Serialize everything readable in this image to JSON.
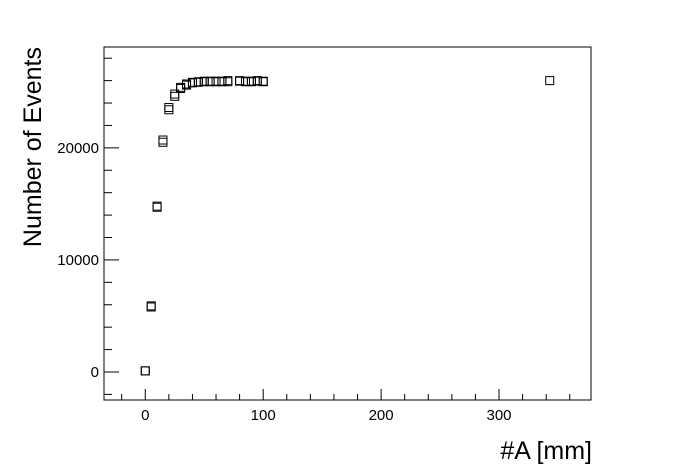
{
  "chart_data": {
    "type": "scatter",
    "title": "",
    "xlabel": "#A [mm]",
    "ylabel": "Number of Events",
    "xlim": [
      -35,
      378
    ],
    "ylim": [
      -2500,
      29000
    ],
    "x_ticks": [
      0,
      100,
      200,
      300
    ],
    "y_ticks": [
      0,
      10000,
      20000
    ],
    "marker": "open-square",
    "grid": false,
    "series": [
      {
        "points": [
          [
            0,
            100
          ],
          [
            5,
            5900
          ],
          [
            10,
            14800
          ],
          [
            15,
            20700
          ],
          [
            20,
            23600
          ],
          [
            25,
            24800
          ],
          [
            30,
            25400
          ],
          [
            35,
            25700
          ],
          [
            40,
            25850
          ],
          [
            45,
            25900
          ],
          [
            50,
            25950
          ],
          [
            55,
            25950
          ],
          [
            60,
            25950
          ],
          [
            65,
            25950
          ],
          [
            70,
            26000
          ],
          [
            80,
            26000
          ],
          [
            85,
            25950
          ],
          [
            90,
            25950
          ],
          [
            95,
            26000
          ],
          [
            100,
            25950
          ],
          [
            343,
            26000
          ]
        ]
      },
      {
        "points": [
          [
            0,
            100
          ],
          [
            5,
            5800
          ],
          [
            10,
            14700
          ],
          [
            15,
            20500
          ],
          [
            20,
            23400
          ],
          [
            25,
            24600
          ],
          [
            30,
            25300
          ],
          [
            35,
            25600
          ],
          [
            40,
            25800
          ],
          [
            45,
            25850
          ],
          [
            50,
            25900
          ],
          [
            55,
            25900
          ],
          [
            60,
            25900
          ],
          [
            65,
            25900
          ],
          [
            70,
            25900
          ],
          [
            80,
            25950
          ],
          [
            85,
            25900
          ],
          [
            90,
            25900
          ],
          [
            95,
            25950
          ],
          [
            100,
            25900
          ]
        ]
      }
    ]
  }
}
